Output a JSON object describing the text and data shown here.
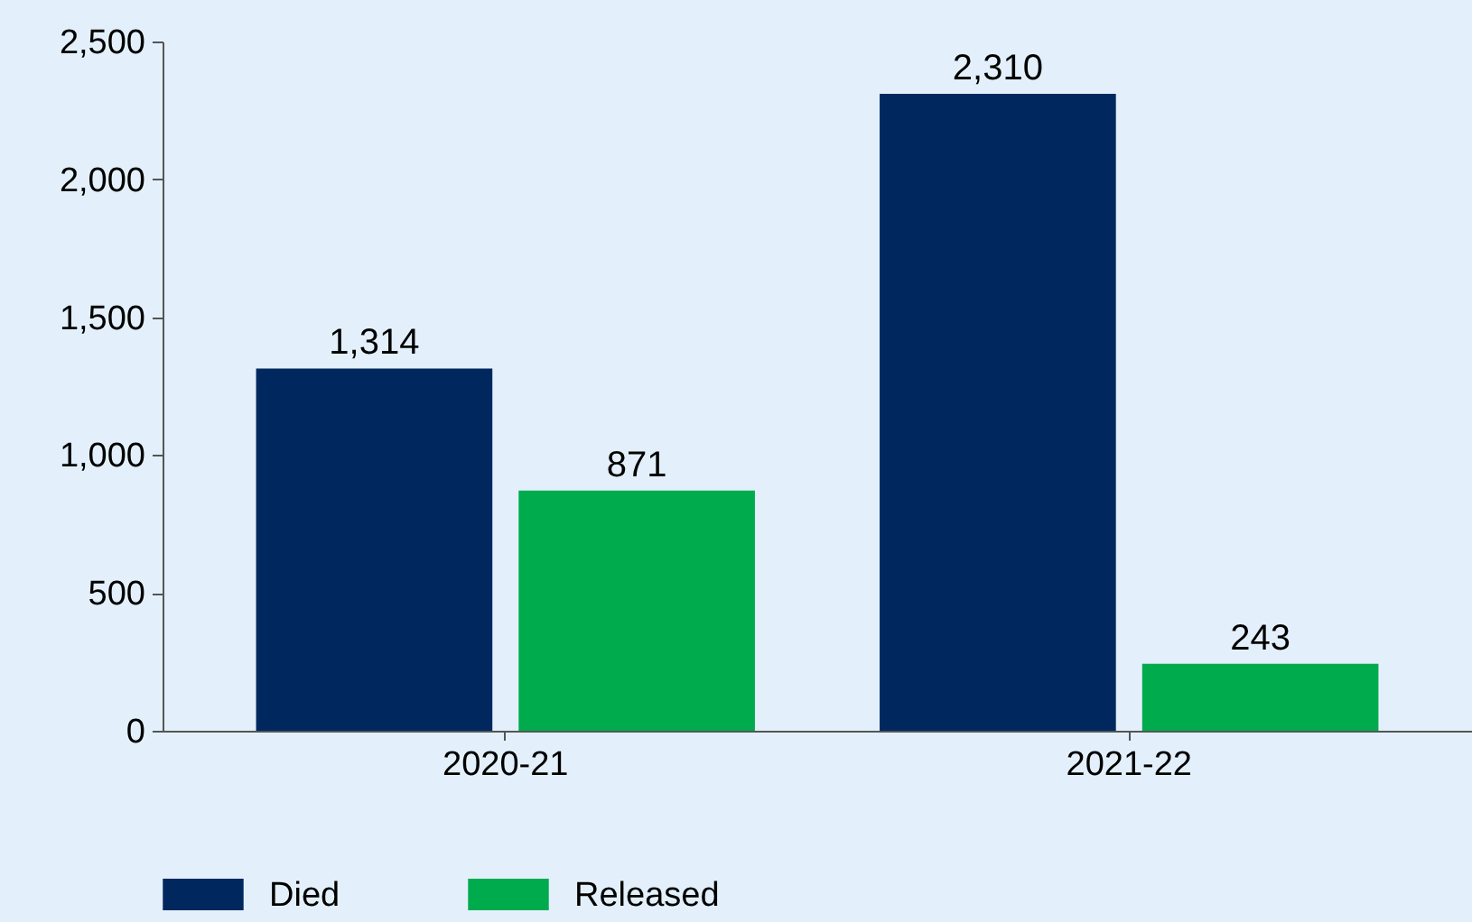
{
  "chart_data": {
    "type": "bar",
    "categories": [
      "2020-21",
      "2021-22"
    ],
    "series": [
      {
        "name": "Died",
        "color": "#00285f",
        "values": [
          1314,
          2310
        ],
        "value_labels": [
          "1,314",
          "2,310"
        ]
      },
      {
        "name": "Released",
        "color": "#00ab4e",
        "values": [
          871,
          243
        ],
        "value_labels": [
          "871",
          "243"
        ]
      }
    ],
    "ylim": [
      0,
      2500
    ],
    "yticks": [
      0,
      {
        "value": 500,
        "label": "500"
      },
      {
        "value": 1000,
        "label": "1,000"
      },
      {
        "value": 1500,
        "label": "1,500"
      },
      {
        "value": 2000,
        "label": "2,000"
      },
      {
        "value": 2500,
        "label": "2,500"
      }
    ],
    "legend": "bottom left"
  }
}
